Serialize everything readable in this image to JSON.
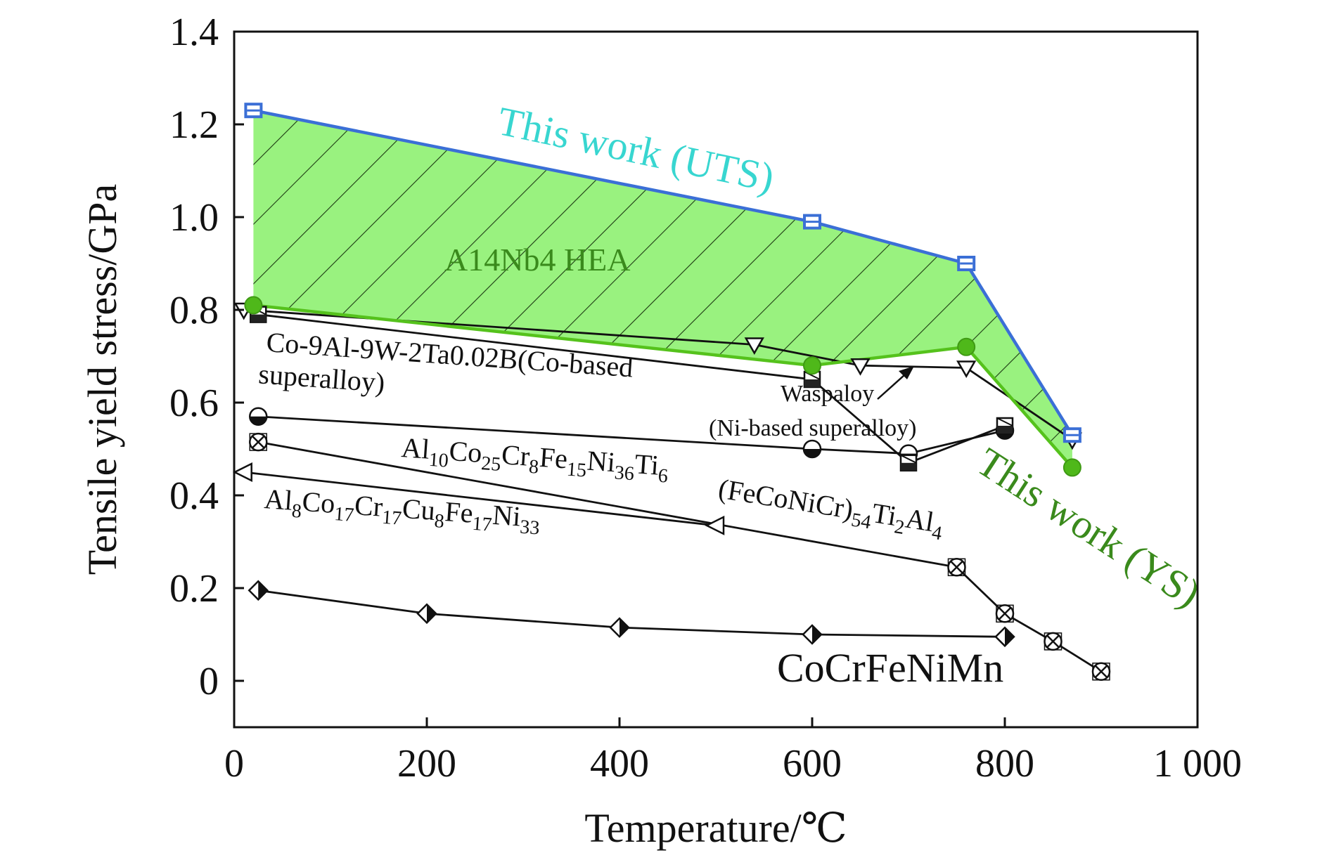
{
  "chart_data": {
    "type": "line",
    "xlabel": "Temperature/℃",
    "ylabel": "Tensile yield stress/GPa",
    "xlim": [
      0,
      1000
    ],
    "ylim": [
      -0.1,
      1.4
    ],
    "xticks": [
      {
        "value": 0,
        "label": "0"
      },
      {
        "value": 200,
        "label": "200"
      },
      {
        "value": 400,
        "label": "400"
      },
      {
        "value": 600,
        "label": "600"
      },
      {
        "value": 800,
        "label": "800"
      },
      {
        "value": 1000,
        "label": "1 000"
      }
    ],
    "yticks": [
      {
        "value": 0,
        "label": "0"
      },
      {
        "value": 0.2,
        "label": "0.2"
      },
      {
        "value": 0.4,
        "label": "0.4"
      },
      {
        "value": 0.6,
        "label": "0.6"
      },
      {
        "value": 0.8,
        "label": "0.8"
      },
      {
        "value": 1.0,
        "label": "1.0"
      },
      {
        "value": 1.2,
        "label": "1.2"
      },
      {
        "value": 1.4,
        "label": "1.4"
      }
    ],
    "grid": false,
    "shaded_region": {
      "label": "A14Nb4 HEA",
      "fill": "#99f27f",
      "hatch": true,
      "x": [
        20,
        600,
        760,
        870,
        870,
        760,
        600,
        20
      ],
      "y": [
        1.23,
        0.99,
        0.9,
        0.53,
        0.46,
        0.72,
        0.68,
        0.81
      ]
    },
    "series": [
      {
        "key": "uts",
        "color": "#3b6fd6",
        "marker": "square-blue",
        "x": [
          20,
          600,
          760,
          870
        ],
        "y": [
          1.23,
          0.99,
          0.9,
          0.53
        ]
      },
      {
        "key": "ys",
        "color": "#55c21c",
        "marker": "circle-green",
        "x": [
          20,
          600,
          760,
          870
        ],
        "y": [
          0.81,
          0.68,
          0.72,
          0.46
        ]
      },
      {
        "key": "co_based",
        "color": "#111111",
        "marker": "hatched-square",
        "x": [
          25,
          600,
          700,
          800
        ],
        "y": [
          0.79,
          0.65,
          0.47,
          0.55
        ]
      },
      {
        "key": "waspaloy",
        "color": "#111111",
        "marker": "triangle-down",
        "x": [
          10,
          540,
          650,
          760,
          870
        ],
        "y": [
          0.8,
          0.725,
          0.68,
          0.675,
          0.52
        ]
      },
      {
        "key": "al10",
        "color": "#111111",
        "marker": "half-filled-circle",
        "x": [
          25,
          600,
          700,
          800
        ],
        "y": [
          0.57,
          0.5,
          0.49,
          0.54
        ]
      },
      {
        "key": "fecocr",
        "color": "#111111",
        "marker": "cross-circle",
        "x": [
          25,
          750,
          800,
          850,
          900
        ],
        "y": [
          0.515,
          0.245,
          0.145,
          0.085,
          0.02
        ]
      },
      {
        "key": "al8",
        "color": "#111111",
        "marker": "triangle-left",
        "x": [
          10,
          500
        ],
        "y": [
          0.45,
          0.335
        ]
      },
      {
        "key": "cocrfenimn",
        "color": "#111111",
        "marker": "half-filled-diamond",
        "x": [
          25,
          200,
          400,
          600,
          800
        ],
        "y": [
          0.195,
          0.145,
          0.115,
          0.1,
          0.095
        ]
      }
    ],
    "annotations": {
      "uts": "This work (UTS)",
      "ys": "This work (YS)",
      "co_based_line1": "Co-9Al-9W-2Ta0.02B(Co-based",
      "co_based_line2": "superalloy)",
      "waspaloy_line1": "Waspaloy",
      "waspaloy_line2": "(Ni-based superalloy)",
      "cocrfenimn": "CoCrFeNiMn",
      "al10": [
        {
          "t": "Al",
          "sub": false
        },
        {
          "t": "10",
          "sub": true
        },
        {
          "t": "Co",
          "sub": false
        },
        {
          "t": "25",
          "sub": true
        },
        {
          "t": "Cr",
          "sub": false
        },
        {
          "t": "8",
          "sub": true
        },
        {
          "t": "Fe",
          "sub": false
        },
        {
          "t": "15",
          "sub": true
        },
        {
          "t": "Ni",
          "sub": false
        },
        {
          "t": "36",
          "sub": true
        },
        {
          "t": "Ti",
          "sub": false
        },
        {
          "t": "6",
          "sub": true
        }
      ],
      "fecocr": [
        {
          "t": "(FeCoNiCr)",
          "sub": false
        },
        {
          "t": "54",
          "sub": true
        },
        {
          "t": "Ti",
          "sub": false
        },
        {
          "t": "2",
          "sub": true
        },
        {
          "t": "Al",
          "sub": false
        },
        {
          "t": "4",
          "sub": true
        }
      ],
      "al8": [
        {
          "t": "Al",
          "sub": false
        },
        {
          "t": "8",
          "sub": true
        },
        {
          "t": "Co",
          "sub": false
        },
        {
          "t": "17",
          "sub": true
        },
        {
          "t": "Cr",
          "sub": false
        },
        {
          "t": "17",
          "sub": true
        },
        {
          "t": "Cu",
          "sub": false
        },
        {
          "t": "8",
          "sub": true
        },
        {
          "t": "Fe",
          "sub": false
        },
        {
          "t": "17",
          "sub": true
        },
        {
          "t": "Ni",
          "sub": false
        },
        {
          "t": "33",
          "sub": true
        }
      ]
    }
  }
}
